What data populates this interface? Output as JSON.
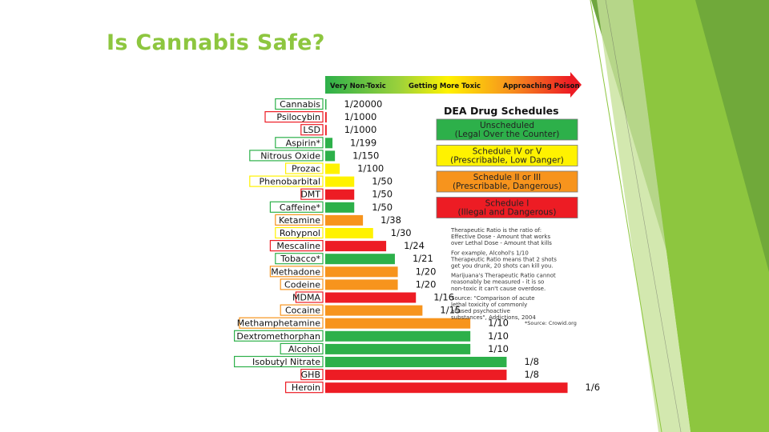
{
  "slide": {
    "title": "Is Cannabis Safe?"
  },
  "colors": {
    "accent": "#8DC63F",
    "green": "#2DB04A",
    "yellow": "#FFF200",
    "orange": "#F7941D",
    "red": "#ED1C24"
  },
  "chart_data": {
    "type": "bar",
    "orientation": "horizontal",
    "title": "DEA Drug Schedules",
    "scale_labels": [
      "Very Non-Toxic",
      "Getting More Toxic",
      "Approaching Poison"
    ],
    "categories": [
      "Cannabis",
      "Psilocybin",
      "LSD",
      "Aspirin*",
      "Nitrous Oxide",
      "Prozac",
      "Phenobarbital",
      "DMT",
      "Caffeine*",
      "Ketamine",
      "Rohypnol",
      "Mescaline",
      "Tobacco*",
      "Methadone",
      "Codeine",
      "MDMA",
      "Cocaine",
      "Methamphetamine",
      "Dextromethorphan",
      "Alcohol",
      "Isobutyl Nitrate",
      "GHB",
      "Heroin"
    ],
    "values": [
      "1/20000",
      "1/1000",
      "1/1000",
      "1/199",
      "1/150",
      "1/100",
      "1/50",
      "1/50",
      "1/50",
      "1/38",
      "1/30",
      "1/24",
      "1/21",
      "1/20",
      "1/20",
      "1/16",
      "1/15",
      "1/10",
      "1/10",
      "1/10",
      "1/8",
      "1/8",
      "1/6"
    ],
    "numeric_values": [
      5e-05,
      0.001,
      0.001,
      0.005,
      0.0067,
      0.01,
      0.02,
      0.02,
      0.02,
      0.026,
      0.033,
      0.042,
      0.048,
      0.05,
      0.05,
      0.0625,
      0.067,
      0.1,
      0.1,
      0.1,
      0.125,
      0.125,
      0.167
    ],
    "schedule": [
      "unscheduled",
      "scheduled1",
      "scheduled1",
      "unscheduled",
      "unscheduled",
      "schedule4",
      "schedule4",
      "scheduled1",
      "unscheduled",
      "schedule2",
      "schedule4",
      "scheduled1",
      "unscheduled",
      "schedule2",
      "schedule2",
      "scheduled1",
      "schedule2",
      "schedule2",
      "unscheduled",
      "unscheduled",
      "unscheduled",
      "scheduled1",
      "scheduled1"
    ],
    "legend": [
      {
        "key": "unscheduled",
        "line1": "Unscheduled",
        "line2": "(Legal Over the Counter)",
        "color": "#2DB04A"
      },
      {
        "key": "schedule4",
        "line1": "Schedule IV or V",
        "line2": "(Prescribable, Low Danger)",
        "color": "#FFF200"
      },
      {
        "key": "schedule2",
        "line1": "Schedule II or III",
        "line2": "(Prescribable, Dangerous)",
        "color": "#F7941D"
      },
      {
        "key": "scheduled1",
        "line1": "Schedule I",
        "line2": "(Illegal and Dangerous)",
        "color": "#ED1C24"
      }
    ],
    "notes": [
      "Therapeutic Ratio is the ratio of:",
      "Effective Dose - Amount that works",
      "over Lethal Dose - Amount that kills",
      "",
      "For example, Alcohol's 1/10",
      "Therapeutic Ratio means that 2 shots",
      "get you drunk, 20 shots can kill you.",
      "",
      "Marijuana's Therapeutic Ratio cannot",
      "reasonably be measured - it is so",
      "non-toxic it can't cause overdose.",
      "",
      "Source: \"Comparison of acute",
      "lethal toxicity of commonly",
      "abused psychoactive",
      "substances\", Addictions, 2004"
    ],
    "credit": "*Source: Crowid.org"
  }
}
